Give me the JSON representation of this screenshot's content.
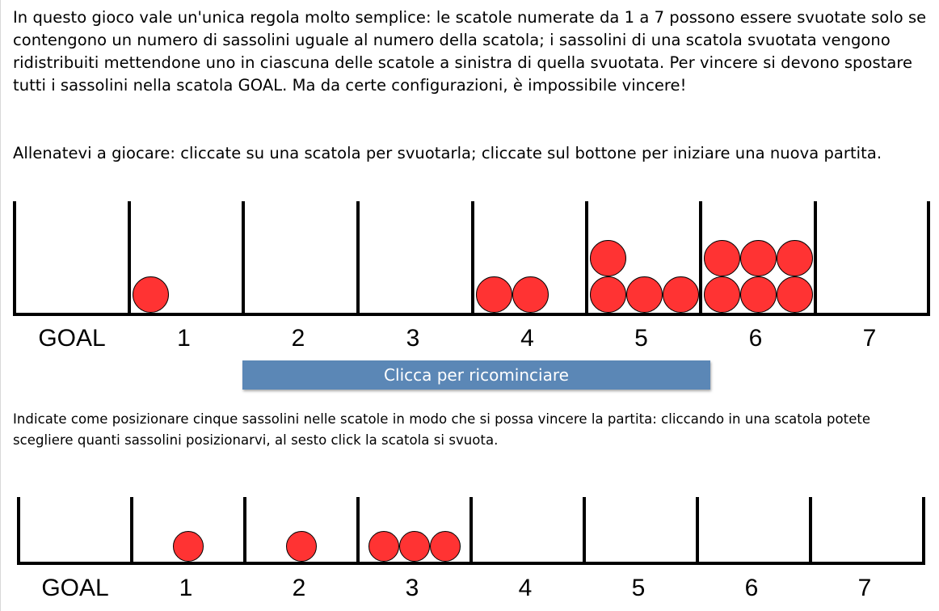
{
  "intro_text": "In questo gioco vale un'unica regola molto semplice: le scatole numerate da 1 a 7 possono essere svuotate solo se contengono un numero di sassolini uguale al numero della scatola; i sassolini di una scatola svuotata vengono ridistribuiti mettendone uno in ciascuna delle scatole a sinistra di quella svuotata. Per vincere si devono spostare tutti i sassolini nella scatola GOAL. Ma da certe configurazioni, è impossibile vincere!",
  "instructions_text": "Allenatevi a giocare: cliccate su una scatola per svuotarla; cliccate sul bottone per iniziare una nuova partita.",
  "restart_button_label": "Clicca per ricominciare",
  "challenge_text": "Indicate come posizionare cinque sassolini nelle scatole in modo che si possa vincere la partita: cliccando in una scatola potete scegliere quanti sassolini posizionarvi, al sesto click la scatola si svuota.",
  "pebble_color": "#ff3333",
  "box_labels": [
    "GOAL",
    "1",
    "2",
    "3",
    "4",
    "5",
    "6",
    "7"
  ],
  "board_1": {
    "pebbles": [
      0,
      1,
      0,
      0,
      2,
      4,
      6,
      0
    ]
  },
  "board_2": {
    "pebbles": [
      0,
      1,
      1,
      3,
      0,
      0,
      0,
      0
    ]
  }
}
